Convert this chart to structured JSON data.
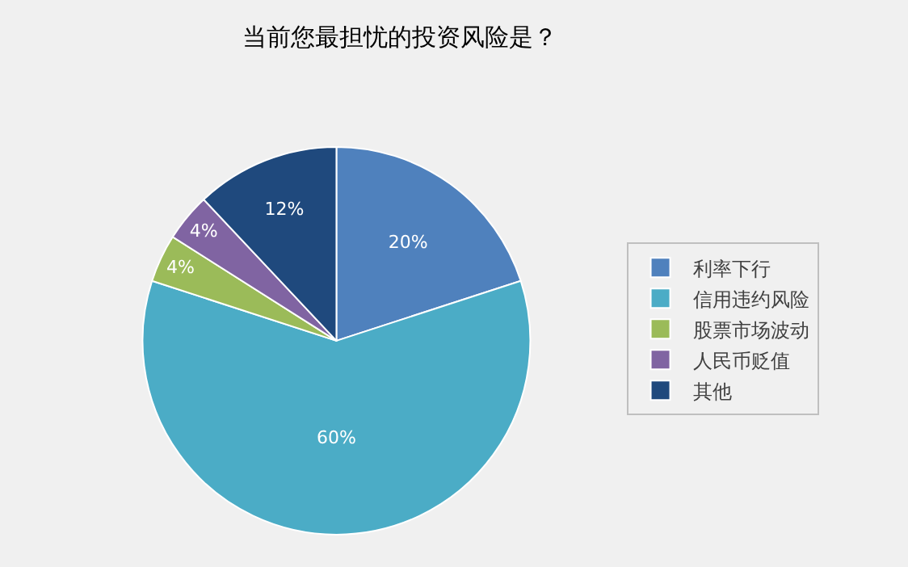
{
  "chart_data": {
    "type": "pie",
    "title": "当前您最担忧的投资风险是？",
    "categories": [
      "利率下行",
      "信用违约风险",
      "股票市场波动",
      "人民币贬值",
      "其他"
    ],
    "values": [
      20,
      60,
      4,
      4,
      12
    ],
    "value_labels": [
      "20%",
      "60%",
      "4%",
      "4%",
      "12%"
    ],
    "colors": [
      "#4f81bd",
      "#4bacc6",
      "#9bbb59",
      "#8064a2",
      "#1f497d"
    ],
    "legend": "right"
  }
}
